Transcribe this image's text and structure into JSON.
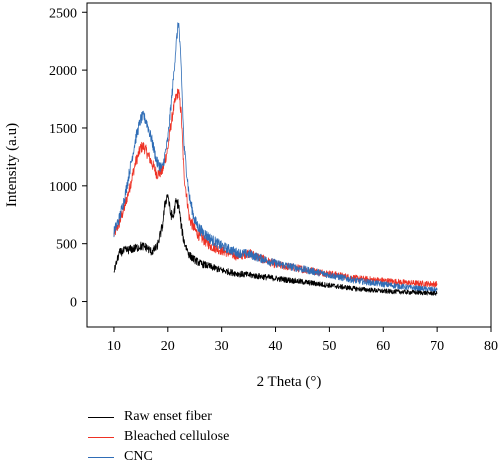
{
  "chart_data": {
    "type": "line",
    "title": "",
    "xlabel": "2 Theta (°)",
    "ylabel": "Intensity (a.u)",
    "xlim": [
      5,
      80
    ],
    "ylim": [
      -220,
      2580
    ],
    "xticks": [
      10,
      20,
      30,
      40,
      50,
      60,
      70,
      80
    ],
    "yticks": [
      0,
      500,
      1000,
      1500,
      2000,
      2500
    ],
    "grid": false,
    "legend_position": "bottom-left",
    "series": [
      {
        "name": "Raw enset fiber",
        "color": "#000000",
        "noise": 45,
        "x": [
          10,
          11,
          12,
          13,
          14,
          15,
          16,
          17,
          18,
          19,
          19.5,
          20,
          20.5,
          21,
          21.5,
          22,
          22.5,
          23,
          24,
          25,
          26,
          28,
          30,
          33,
          35,
          40,
          45,
          50,
          55,
          60,
          65,
          70
        ],
        "values": [
          260,
          420,
          440,
          450,
          460,
          480,
          470,
          430,
          470,
          650,
          850,
          930,
          760,
          730,
          860,
          840,
          650,
          520,
          400,
          360,
          330,
          300,
          270,
          240,
          230,
          200,
          170,
          140,
          110,
          90,
          80,
          70
        ]
      },
      {
        "name": "Bleached cellulose",
        "color": "#ee3124",
        "noise": 50,
        "x": [
          10,
          11,
          12,
          13,
          14,
          15,
          15.5,
          16,
          17,
          18,
          19,
          20,
          20.5,
          21,
          21.5,
          22,
          22.5,
          23,
          24,
          25,
          26,
          28,
          30,
          33,
          35,
          40,
          45,
          50,
          55,
          60,
          65,
          70
        ],
        "values": [
          580,
          680,
          820,
          1000,
          1200,
          1330,
          1340,
          1300,
          1200,
          1100,
          1130,
          1320,
          1500,
          1650,
          1760,
          1820,
          1620,
          1100,
          720,
          620,
          560,
          480,
          440,
          390,
          420,
          320,
          280,
          240,
          200,
          180,
          160,
          150
        ]
      },
      {
        "name": "CNC",
        "color": "#2f6db6",
        "noise": 50,
        "x": [
          10,
          11,
          12,
          13,
          14,
          15,
          15.5,
          16,
          17,
          18,
          19,
          20,
          20.5,
          21,
          21.5,
          22,
          22.5,
          23,
          24,
          25,
          26,
          28,
          30,
          33,
          35,
          40,
          45,
          50,
          55,
          60,
          65,
          70
        ],
        "values": [
          600,
          720,
          900,
          1150,
          1400,
          1580,
          1600,
          1560,
          1400,
          1200,
          1150,
          1400,
          1650,
          1900,
          2200,
          2430,
          2000,
          1350,
          900,
          700,
          620,
          540,
          480,
          420,
          410,
          330,
          280,
          230,
          180,
          150,
          120,
          100
        ]
      }
    ]
  }
}
